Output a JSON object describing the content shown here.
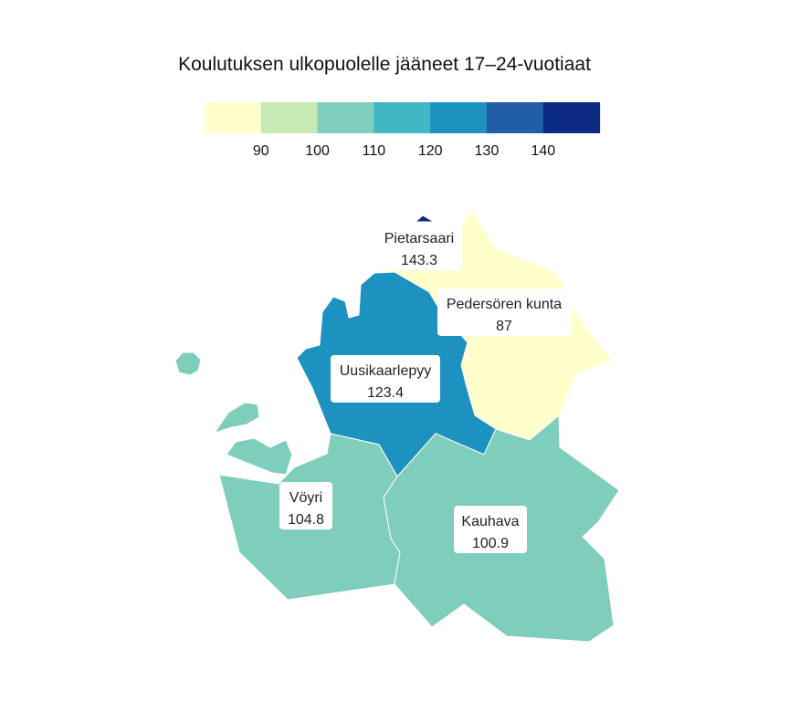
{
  "chart_data": {
    "type": "choropleth-map",
    "title": "Koulutuksen ulkopuolelle jääneet 17–24-vuotiaat",
    "legend": {
      "placement": "top",
      "breaks": [
        90,
        100,
        110,
        120,
        130,
        140
      ],
      "tick_labels": [
        "90",
        "100",
        "110",
        "120",
        "130",
        "140"
      ],
      "colors": [
        "#ffffcc",
        "#c7e9b4",
        "#7fcdbb",
        "#41b6c4",
        "#1d91c0",
        "#225ea8",
        "#0c2c84"
      ]
    },
    "regions": [
      {
        "name": "Pietarsaari",
        "value": 143.3,
        "value_label": "143.3"
      },
      {
        "name": "Pedersören kunta",
        "value": 87,
        "value_label": "87"
      },
      {
        "name": "Uusikaarlepyy",
        "value": 123.4,
        "value_label": "123.4"
      },
      {
        "name": "Vöyri",
        "value": 104.8,
        "value_label": "104.8"
      },
      {
        "name": "Kauhava",
        "value": 100.9,
        "value_label": "100.9"
      }
    ]
  }
}
